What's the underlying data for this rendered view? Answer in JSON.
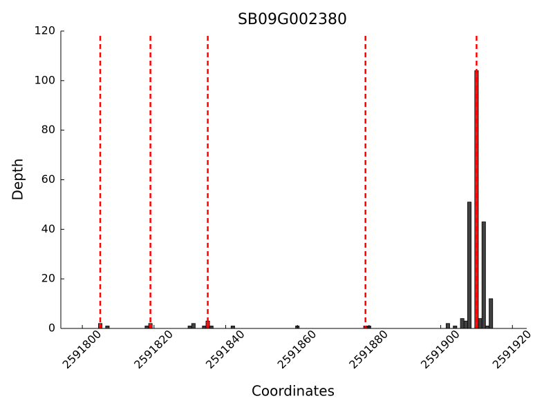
{
  "chart_data": {
    "type": "bar",
    "title": "SB09G002380",
    "x_label": "Coordinates",
    "y_label": "Depth",
    "x": [
      2591805,
      2591807,
      2591818,
      2591819,
      2591830,
      2591831,
      2591834,
      2591835,
      2591836,
      2591842,
      2591860,
      2591879,
      2591880,
      2591902,
      2591904,
      2591906,
      2591907,
      2591908,
      2591910,
      2591911,
      2591912,
      2591913,
      2591914
    ],
    "values": [
      2,
      1,
      1,
      2,
      1,
      2,
      1,
      3,
      1,
      1,
      1,
      1,
      1,
      2,
      1,
      4,
      3,
      51,
      104,
      4,
      43,
      1,
      12
    ],
    "colors": [
      "#e41a1c",
      "#404040",
      "#404040",
      "#e41a1c",
      "#404040",
      "#404040",
      "#404040",
      "#e41a1c",
      "#404040",
      "#404040",
      "#404040",
      "#e41a1c",
      "#404040",
      "#404040",
      "#404040",
      "#404040",
      "#404040",
      "#404040",
      "#e41a1c",
      "#404040",
      "#404040",
      "#404040",
      "#404040"
    ],
    "vlines": [
      2591805,
      2591819,
      2591835,
      2591879,
      2591910
    ],
    "vline_color": "#ff0000",
    "xlim": [
      2591794,
      2591924
    ],
    "xticks": [
      2591800,
      2591820,
      2591840,
      2591860,
      2591880,
      2591900,
      2591920
    ],
    "ylim": [
      0,
      120
    ],
    "yticks": [
      0,
      20,
      40,
      60,
      80,
      100,
      120
    ]
  }
}
